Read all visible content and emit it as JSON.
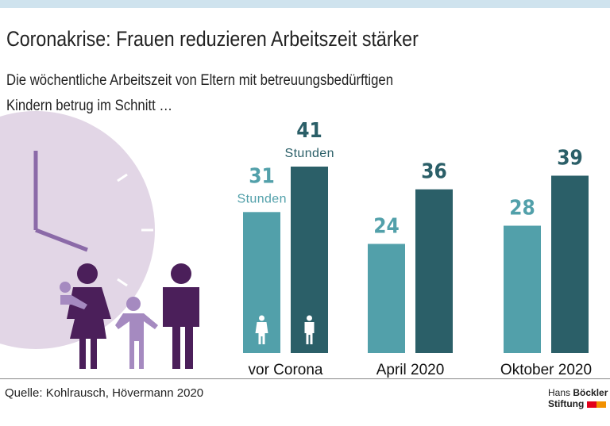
{
  "title": "Coronakrise: Frauen reduzieren Arbeitszeit stärker",
  "subtitle_line1": "Die wöchentliche Arbeitszeit von Eltern mit betreuungsbedürftigen",
  "subtitle_line2": "Kindern betrug im Schnitt …",
  "source": "Quelle: Kohlrausch, Hövermann 2020",
  "logo": {
    "line1a": "Hans ",
    "line1b": "Böckler",
    "line2": "Stiftung"
  },
  "colors": {
    "women": "#52a0aa",
    "men": "#2b5f68",
    "clock": "#e2d6e6",
    "family_dark": "#4b1f5a",
    "family_light": "#a58ac0",
    "logo_red": "#e2001a",
    "logo_orange": "#f29100"
  },
  "chart_data": {
    "type": "bar",
    "categories": [
      "vor Corona",
      "April 2020",
      "Oktober 2020"
    ],
    "series": [
      {
        "values": [
          31,
          24,
          28
        ],
        "icon": "woman-icon"
      },
      {
        "values": [
          41,
          36,
          39
        ],
        "icon": "man-icon"
      }
    ],
    "unit_label": "Stunden",
    "ylim": [
      0,
      41
    ],
    "grid": false
  }
}
